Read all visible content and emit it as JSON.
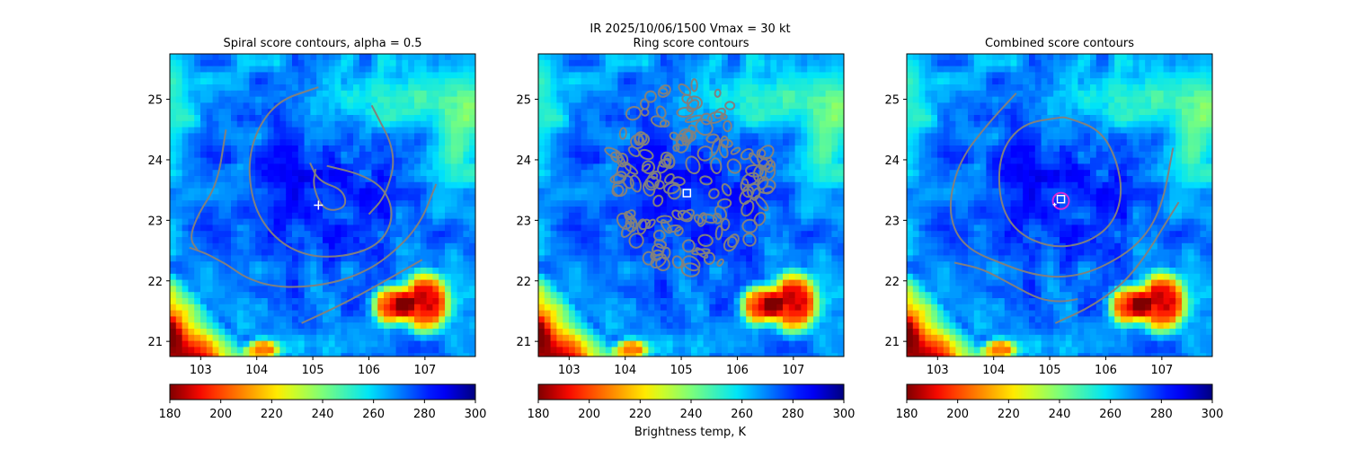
{
  "figure": {
    "suptitle_line1": "IR  2025/10/06/1500    Vmax = 30 kt",
    "colorbar_label": "Brightness temp, K"
  },
  "colors": {
    "contour": "#808080",
    "marker_plus": "#ffffff",
    "marker_square": "#ffffff",
    "marker_circle": "#d42ad4"
  },
  "chart_data": [
    {
      "type": "heatmap",
      "title": "Spiral score contours, alpha =  0.5",
      "colormap": "jet_r",
      "xlim": [
        102.45,
        107.9
      ],
      "ylim": [
        20.75,
        25.75
      ],
      "xticks": [
        103,
        104,
        105,
        106,
        107
      ],
      "yticks": [
        21,
        22,
        23,
        24,
        25
      ],
      "colorbar": {
        "min": 180,
        "max": 300,
        "ticks": [
          180,
          200,
          220,
          240,
          260,
          280,
          300
        ]
      },
      "marker": {
        "shape": "plus",
        "lon": 105.1,
        "lat": 23.25
      },
      "contours": [
        {
          "lon": [
            102.8,
            103.1,
            103.3,
            103.5,
            103.8,
            104.3,
            105.0,
            105.7,
            106.3,
            106.9,
            107.2
          ],
          "lat": [
            22.55,
            22.45,
            22.35,
            22.25,
            22.05,
            21.9,
            21.9,
            22.05,
            22.35,
            22.9,
            23.6
          ]
        },
        {
          "lon": [
            105.1,
            104.3,
            103.85,
            103.9,
            104.3,
            104.9,
            105.6,
            106.2,
            106.45,
            106.3,
            105.9,
            105.25
          ],
          "lat": [
            25.2,
            24.95,
            24.2,
            23.3,
            22.7,
            22.4,
            22.4,
            22.6,
            23.05,
            23.5,
            23.75,
            23.9
          ]
        },
        {
          "lon": [
            103.45,
            103.3,
            102.95,
            102.8,
            102.95
          ],
          "lat": [
            24.5,
            23.6,
            23.1,
            22.7,
            22.5
          ]
        },
        {
          "lon": [
            104.95,
            105.1,
            105.55,
            105.6,
            105.2,
            105.0,
            105.05
          ],
          "lat": [
            23.95,
            23.65,
            23.5,
            23.2,
            23.15,
            23.55,
            23.85
          ]
        },
        {
          "lon": [
            106.05,
            106.5,
            106.3,
            106.0
          ],
          "lat": [
            24.9,
            24.1,
            23.4,
            23.1
          ]
        },
        {
          "lon": [
            104.8,
            105.5,
            106.2,
            106.95
          ],
          "lat": [
            21.3,
            21.6,
            21.95,
            22.35
          ]
        }
      ]
    },
    {
      "type": "heatmap",
      "title": "Ring score contours",
      "colormap": "jet_r",
      "xlim": [
        102.45,
        107.9
      ],
      "ylim": [
        20.75,
        25.75
      ],
      "xticks": [
        103,
        104,
        105,
        106,
        107
      ],
      "yticks": [
        21,
        22,
        23,
        24,
        25
      ],
      "colorbar": {
        "min": 180,
        "max": 300,
        "ticks": [
          180,
          200,
          220,
          240,
          260,
          280,
          300
        ]
      },
      "marker": {
        "shape": "square",
        "lon": 105.1,
        "lat": 23.45
      },
      "ring_region": {
        "center_lon": 105.15,
        "center_lat": 23.7,
        "radius_lon": 1.45,
        "radius_lat": 1.55
      }
    },
    {
      "type": "heatmap",
      "title": "Combined score contours",
      "colormap": "jet_r",
      "xlim": [
        102.45,
        107.9
      ],
      "ylim": [
        20.75,
        25.75
      ],
      "xticks": [
        103,
        104,
        105,
        106,
        107
      ],
      "yticks": [
        21,
        22,
        23,
        24,
        25
      ],
      "colorbar": {
        "min": 180,
        "max": 300,
        "ticks": [
          180,
          200,
          220,
          240,
          260,
          280,
          300
        ]
      },
      "marker": {
        "shape": "square-circle",
        "lon": 105.2,
        "lat": 23.35
      },
      "contours": [
        {
          "lon": [
            104.4,
            103.9,
            103.4,
            103.2,
            103.3,
            103.6,
            104.1,
            104.7,
            105.3,
            105.9,
            106.6,
            107.0,
            107.2
          ],
          "lat": [
            25.1,
            24.6,
            24.0,
            23.3,
            22.8,
            22.5,
            22.3,
            22.1,
            22.05,
            22.2,
            22.6,
            23.2,
            24.2
          ]
        },
        {
          "lon": [
            105.2,
            104.5,
            104.1,
            104.1,
            104.4,
            105.0,
            105.6,
            106.1,
            106.3,
            106.2,
            105.9,
            105.3,
            105.2
          ],
          "lat": [
            24.7,
            24.6,
            24.1,
            23.3,
            22.8,
            22.55,
            22.6,
            22.9,
            23.4,
            24.0,
            24.5,
            24.7,
            24.7
          ]
        },
        {
          "lon": [
            103.3,
            103.8,
            104.3,
            104.8,
            105.2,
            105.5
          ],
          "lat": [
            22.3,
            22.2,
            21.95,
            21.7,
            21.65,
            21.7
          ]
        },
        {
          "lon": [
            105.1,
            105.8,
            106.5,
            107.3
          ],
          "lat": [
            21.3,
            21.6,
            22.1,
            23.3
          ]
        }
      ]
    }
  ]
}
